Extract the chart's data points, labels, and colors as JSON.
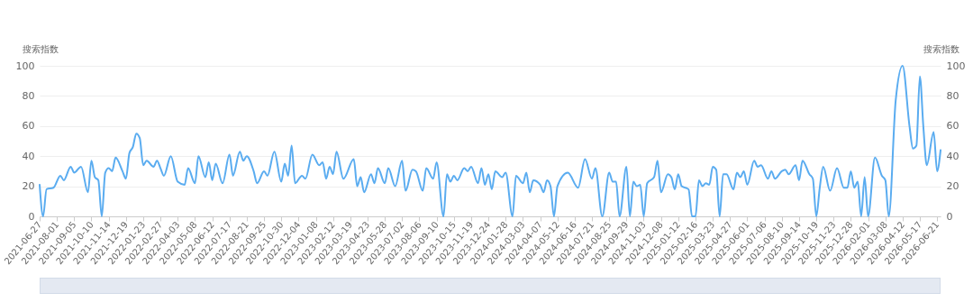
{
  "chart_data": {
    "type": "line",
    "ylabel": "搜索指数",
    "y2label": "搜索指数",
    "x": [
      "2021-06-27",
      "2021-07-04",
      "2021-07-11",
      "2021-07-25",
      "2021-08-08",
      "2021-08-15",
      "2021-08-29",
      "2021-09-05",
      "2021-09-19",
      "2021-10-03",
      "2021-10-10",
      "2021-10-17",
      "2021-10-24",
      "2021-10-31",
      "2021-11-07",
      "2021-11-14",
      "2021-11-21",
      "2021-11-28",
      "2021-12-12",
      "2021-12-19",
      "2021-12-26",
      "2022-01-02",
      "2022-01-09",
      "2022-01-16",
      "2022-01-23",
      "2022-01-30",
      "2022-02-13",
      "2022-02-20",
      "2022-02-27",
      "2022-03-06",
      "2022-03-20",
      "2022-04-03",
      "2022-04-17",
      "2022-04-24",
      "2022-05-08",
      "2022-05-15",
      "2022-05-29",
      "2022-06-05",
      "2022-06-12",
      "2022-06-19",
      "2022-07-03",
      "2022-07-17",
      "2022-07-24",
      "2022-08-07",
      "2022-08-14",
      "2022-08-21",
      "2022-09-04",
      "2022-09-11",
      "2022-09-25",
      "2022-10-02",
      "2022-10-16",
      "2022-10-30",
      "2022-11-06",
      "2022-11-13",
      "2022-11-20",
      "2022-11-27",
      "2022-12-11",
      "2022-12-18",
      "2023-01-01",
      "2023-01-15",
      "2023-01-22",
      "2023-01-29",
      "2023-02-05",
      "2023-02-12",
      "2023-02-19",
      "2023-03-05",
      "2023-03-26",
      "2023-04-02",
      "2023-04-09",
      "2023-04-16",
      "2023-04-30",
      "2023-05-07",
      "2023-05-14",
      "2023-05-28",
      "2023-06-04",
      "2023-06-18",
      "2023-07-02",
      "2023-07-09",
      "2023-07-23",
      "2023-07-30",
      "2023-08-13",
      "2023-08-20",
      "2023-09-03",
      "2023-09-10",
      "2023-09-24",
      "2023-10-01",
      "2023-10-08",
      "2023-10-15",
      "2023-10-22",
      "2023-11-05",
      "2023-11-12",
      "2023-11-19",
      "2023-12-03",
      "2023-12-10",
      "2023-12-17",
      "2023-12-24",
      "2023-12-31",
      "2024-01-07",
      "2024-01-21",
      "2024-01-28",
      "2024-02-11",
      "2024-02-18",
      "2024-03-03",
      "2024-03-10",
      "2024-03-17",
      "2024-03-24",
      "2024-04-07",
      "2024-04-14",
      "2024-04-21",
      "2024-04-28",
      "2024-05-05",
      "2024-05-12",
      "2024-06-02",
      "2024-06-23",
      "2024-07-07",
      "2024-07-21",
      "2024-07-28",
      "2024-08-11",
      "2024-08-25",
      "2024-09-01",
      "2024-09-08",
      "2024-09-15",
      "2024-09-29",
      "2024-10-06",
      "2024-10-13",
      "2024-10-20",
      "2024-10-27",
      "2024-11-03",
      "2024-11-10",
      "2024-11-24",
      "2024-12-01",
      "2024-12-08",
      "2024-12-22",
      "2024-12-29",
      "2025-01-05",
      "2025-01-12",
      "2025-01-19",
      "2025-02-02",
      "2025-02-09",
      "2025-02-16",
      "2025-02-23",
      "2025-03-02",
      "2025-03-09",
      "2025-03-16",
      "2025-03-23",
      "2025-03-30",
      "2025-04-06",
      "2025-04-13",
      "2025-04-20",
      "2025-05-04",
      "2025-05-11",
      "2025-05-18",
      "2025-05-25",
      "2025-06-01",
      "2025-06-15",
      "2025-06-22",
      "2025-06-29",
      "2025-07-13",
      "2025-07-20",
      "2025-07-27",
      "2025-08-10",
      "2025-08-17",
      "2025-08-24",
      "2025-09-07",
      "2025-09-14",
      "2025-09-21",
      "2025-10-05",
      "2025-10-12",
      "2025-10-19",
      "2025-10-26",
      "2025-11-02",
      "2025-11-16",
      "2025-11-30",
      "2025-12-14",
      "2025-12-21",
      "2025-12-28",
      "2026-01-04",
      "2026-01-11",
      "2026-01-18",
      "2026-01-25",
      "2026-02-01",
      "2026-02-15",
      "2026-03-01",
      "2026-03-08",
      "2026-03-15",
      "2026-03-29",
      "2026-04-12",
      "2026-04-26",
      "2026-05-03",
      "2026-05-10",
      "2026-05-17",
      "2026-05-24",
      "2026-05-31",
      "2026-06-14",
      "2026-06-21",
      "2026-06-28"
    ],
    "series": [
      {
        "color": "#5aacf0",
        "values": [
          21,
          0,
          18,
          19,
          27,
          24,
          33,
          29,
          33,
          16,
          37,
          26,
          24,
          0,
          29,
          32,
          30,
          39,
          30,
          25,
          42,
          46,
          55,
          52,
          34,
          37,
          33,
          37,
          32,
          27,
          40,
          23,
          21,
          32,
          22,
          40,
          26,
          36,
          24,
          35,
          22,
          41,
          27,
          43,
          37,
          40,
          30,
          22,
          30,
          27,
          43,
          23,
          35,
          27,
          47,
          22,
          27,
          25,
          41,
          34,
          36,
          25,
          33,
          28,
          43,
          25,
          38,
          20,
          26,
          16,
          28,
          22,
          32,
          22,
          32,
          20,
          37,
          17,
          31,
          30,
          17,
          32,
          25,
          36,
          0,
          28,
          23,
          27,
          24,
          32,
          30,
          33,
          22,
          32,
          21,
          28,
          18,
          30,
          26,
          29,
          0,
          27,
          22,
          29,
          16,
          24,
          21,
          16,
          24,
          20,
          0,
          20,
          29,
          19,
          38,
          25,
          32,
          0,
          29,
          23,
          23,
          0,
          33,
          0,
          23,
          20,
          21,
          0,
          22,
          26,
          37,
          16,
          28,
          26,
          18,
          28,
          20,
          18,
          0,
          0,
          24,
          20,
          22,
          21,
          33,
          31,
          0,
          28,
          28,
          18,
          29,
          26,
          30,
          21,
          37,
          33,
          34,
          25,
          30,
          25,
          30,
          31,
          28,
          34,
          24,
          37,
          28,
          25,
          0,
          19,
          33,
          17,
          32,
          19,
          19,
          30,
          19,
          23,
          0,
          26,
          0,
          39,
          27,
          24,
          0,
          77,
          100,
          60,
          45,
          47,
          93,
          60,
          34,
          56,
          30,
          44
        ]
      }
    ],
    "xlim": [
      "2021-06-27",
      "2026-06-28"
    ],
    "xticks": [
      "2021-06-27",
      "2021-08-01",
      "2021-09-05",
      "2021-10-10",
      "2021-11-14",
      "2021-12-19",
      "2022-01-23",
      "2022-02-27",
      "2022-04-03",
      "2022-05-08",
      "2022-06-12",
      "2022-07-17",
      "2022-08-21",
      "2022-09-25",
      "2022-10-30",
      "2022-12-04",
      "2023-01-08",
      "2023-02-12",
      "2023-03-19",
      "2023-04-23",
      "2023-05-28",
      "2023-07-02",
      "2023-08-06",
      "2023-09-10",
      "2023-10-15",
      "2023-11-19",
      "2023-12-24",
      "2024-01-28",
      "2024-03-03",
      "2024-04-07",
      "2024-05-12",
      "2024-06-16",
      "2024-07-21",
      "2024-08-25",
      "2024-09-29",
      "2024-11-03",
      "2024-12-08",
      "2025-01-12",
      "2025-02-16",
      "2025-03-23",
      "2025-04-27",
      "2025-06-01",
      "2025-07-06",
      "2025-08-10",
      "2025-09-14",
      "2025-10-19",
      "2025-11-23",
      "2025-12-28",
      "2026-02-01",
      "2026-03-08",
      "2026-04-12",
      "2026-05-17",
      "2026-06-21"
    ],
    "ylim": [
      0,
      100
    ],
    "yticks": [
      0,
      20,
      40,
      60,
      80,
      100
    ],
    "y2lim": [
      0,
      100
    ],
    "y2ticks": [
      0,
      20,
      40,
      60,
      80,
      100
    ],
    "grid": "y",
    "marker": "none",
    "line_style": "solid"
  }
}
